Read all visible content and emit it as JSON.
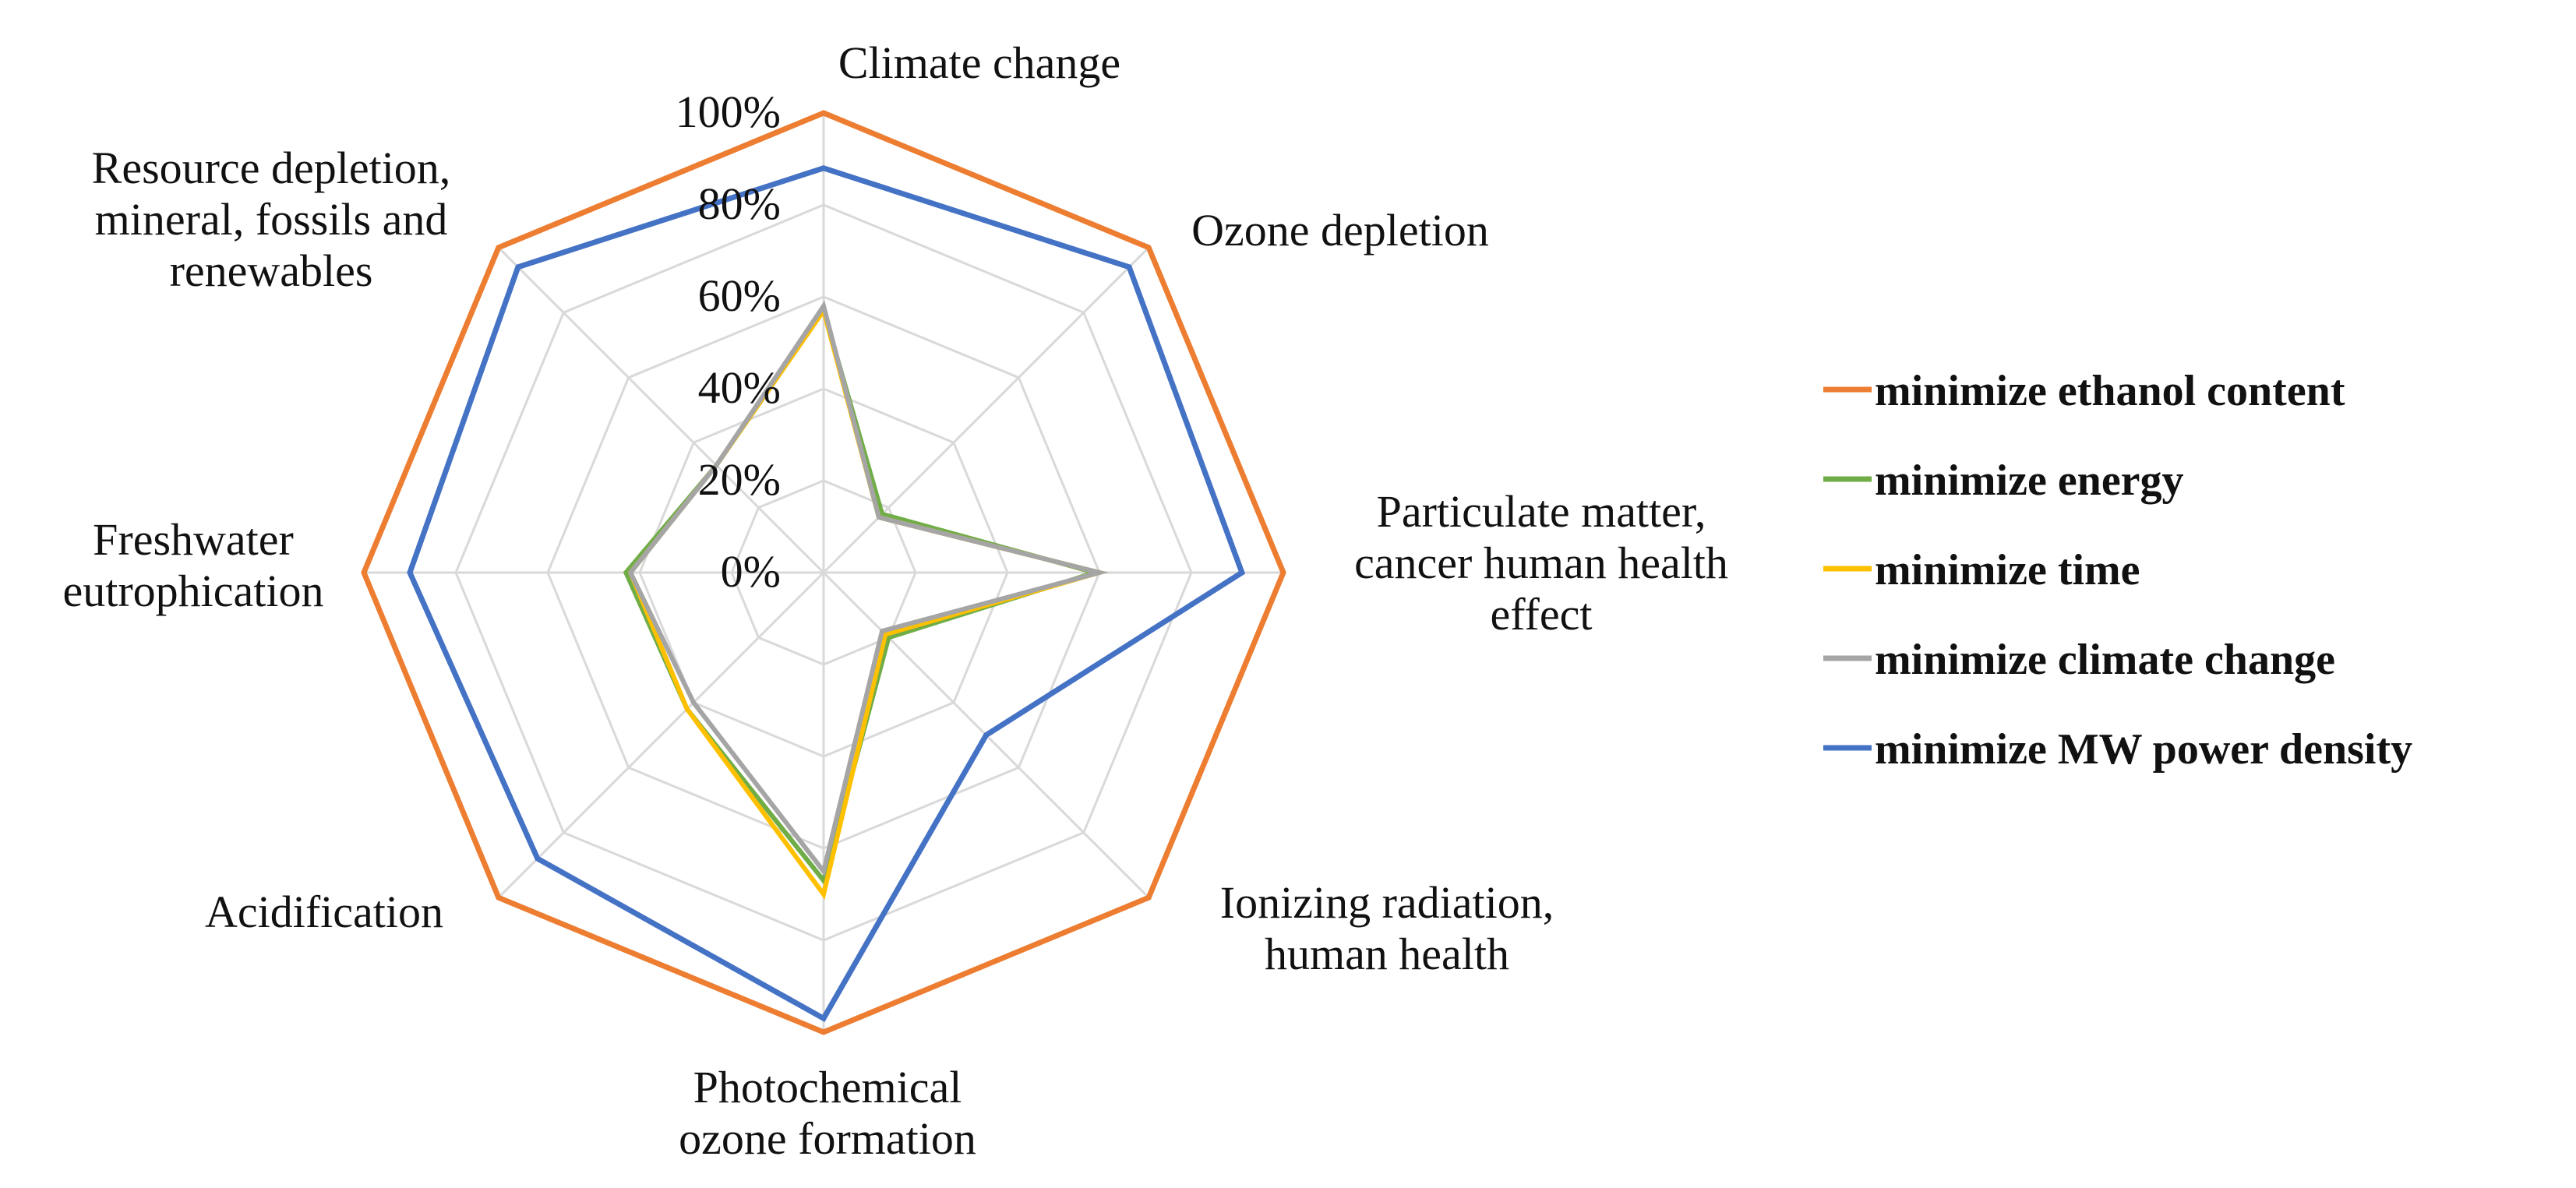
{
  "chart_data": {
    "type": "radar",
    "categories": [
      [
        "Climate change"
      ],
      [
        "Ozone depletion"
      ],
      [
        "Particulate matter,",
        "cancer human health",
        "effect"
      ],
      [
        "Ionizing radiation,",
        "human health"
      ],
      [
        "Photochemical",
        "ozone formation"
      ],
      [
        "Acidification"
      ],
      [
        "Freshwater",
        "eutrophication"
      ],
      [
        "Resource depletion,",
        "mineral, fossils and",
        "renewables"
      ]
    ],
    "radial_ticks": [
      "0%",
      "20%",
      "40%",
      "60%",
      "80%",
      "100%"
    ],
    "rlim": [
      0,
      100
    ],
    "grid": true,
    "legend_position": "right",
    "series": [
      {
        "name": "minimize ethanol content",
        "color": "#ED7D31",
        "values": [
          100,
          100,
          100,
          100,
          100,
          100,
          100,
          100
        ]
      },
      {
        "name": "minimize energy",
        "color": "#70AD47",
        "values": [
          57,
          18,
          59,
          20,
          67,
          42,
          43,
          33
        ]
      },
      {
        "name": "minimize time",
        "color": "#FFC000",
        "values": [
          57,
          17,
          60,
          19,
          70,
          42,
          42,
          33
        ]
      },
      {
        "name": "minimize climate change",
        "color": "#A5A5A5",
        "values": [
          58,
          17,
          60,
          18,
          65,
          40,
          42,
          33
        ]
      },
      {
        "name": "minimize MW power density",
        "color": "#4472C4",
        "values": [
          88,
          94,
          91,
          50,
          97,
          88,
          90,
          94
        ]
      }
    ]
  }
}
